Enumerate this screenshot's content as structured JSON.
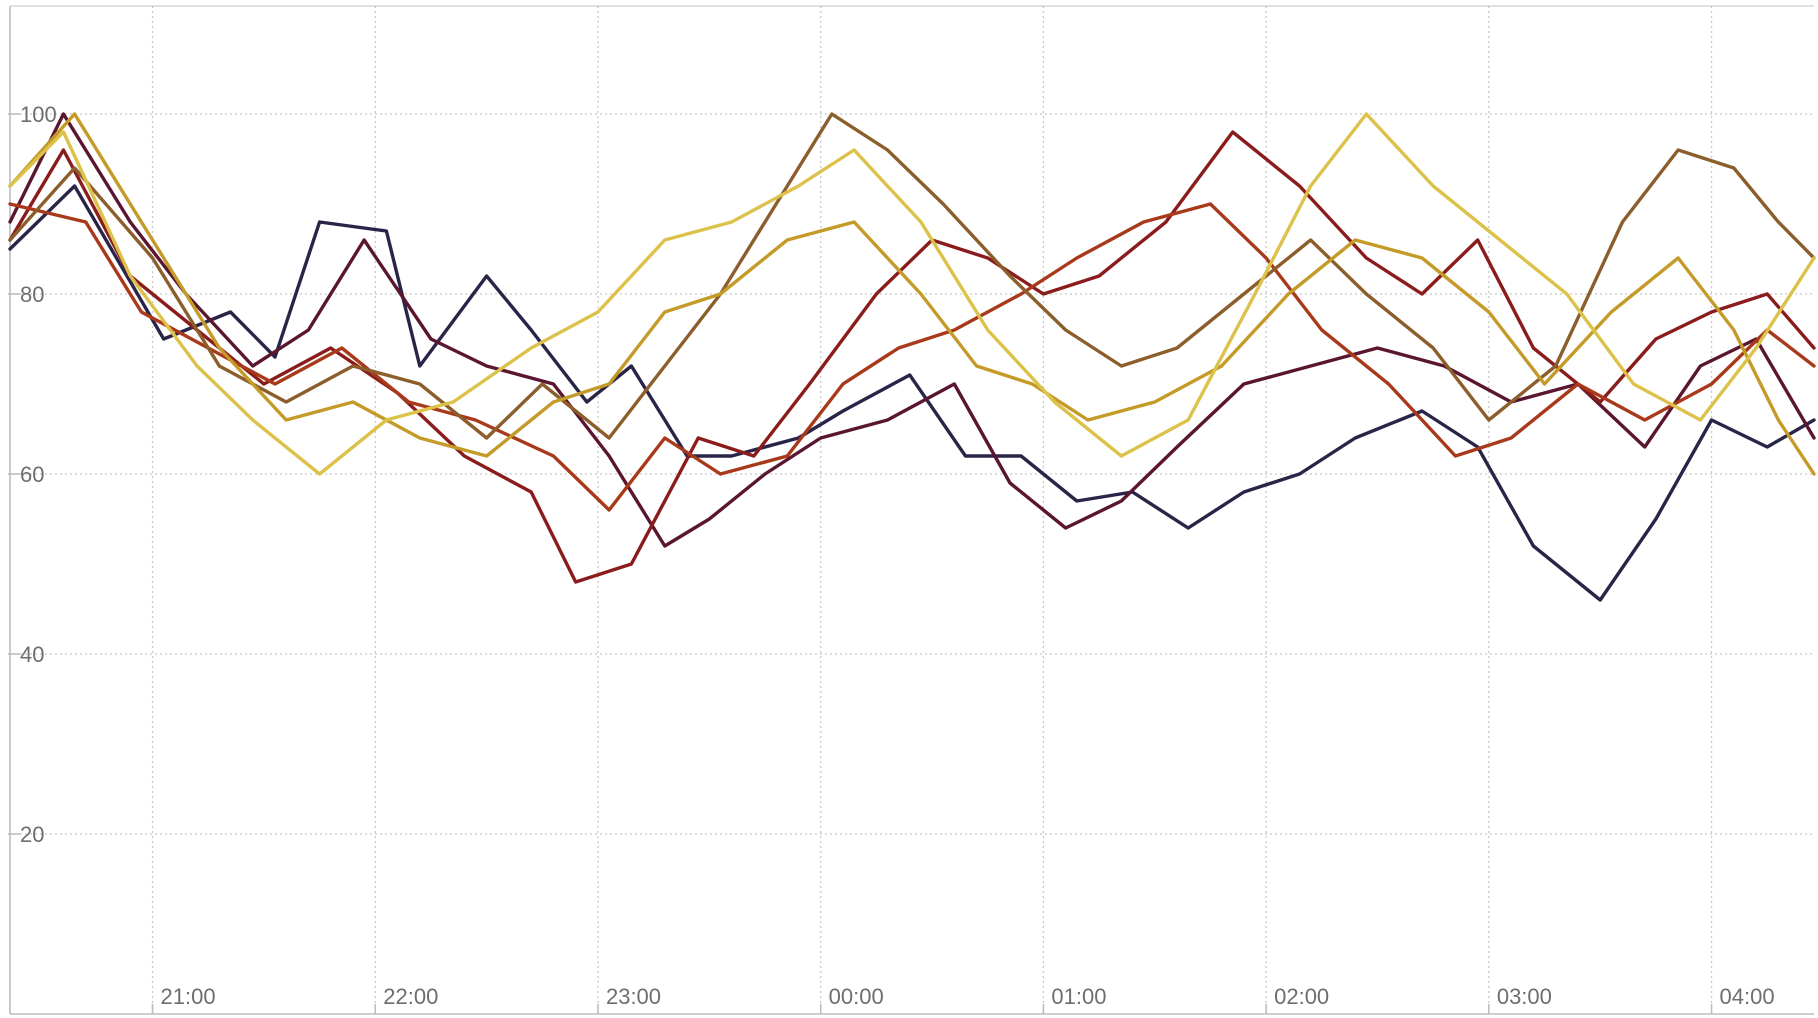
{
  "chart_data": {
    "type": "line",
    "title": "",
    "xlabel": "",
    "ylabel": "",
    "x_ticks": [
      "21:00",
      "22:00",
      "23:00",
      "00:00",
      "01:00",
      "02:00",
      "03:00",
      "04:00"
    ],
    "y_ticks": [
      20,
      40,
      60,
      80,
      100
    ],
    "ylim": [
      0,
      112
    ],
    "x_range_hours": [
      -0.64,
      7.46
    ],
    "grid": true,
    "legend": "none",
    "series": [
      {
        "color": "#2a2548",
        "points": [
          [
            -0.64,
            85
          ],
          [
            -0.35,
            92
          ],
          [
            0.05,
            75
          ],
          [
            0.35,
            78
          ],
          [
            0.55,
            73
          ],
          [
            0.75,
            88
          ],
          [
            1.05,
            87
          ],
          [
            1.2,
            72
          ],
          [
            1.5,
            82
          ],
          [
            1.7,
            76
          ],
          [
            1.95,
            68
          ],
          [
            2.15,
            72
          ],
          [
            2.4,
            62
          ],
          [
            2.6,
            62
          ],
          [
            2.9,
            64
          ],
          [
            3.1,
            67
          ],
          [
            3.4,
            71
          ],
          [
            3.65,
            62
          ],
          [
            3.9,
            62
          ],
          [
            4.15,
            57
          ],
          [
            4.4,
            58
          ],
          [
            4.65,
            54
          ],
          [
            4.9,
            58
          ],
          [
            5.15,
            60
          ],
          [
            5.4,
            64
          ],
          [
            5.7,
            67
          ],
          [
            5.95,
            63
          ],
          [
            6.2,
            52
          ],
          [
            6.5,
            46
          ],
          [
            6.75,
            55
          ],
          [
            7.0,
            66
          ],
          [
            7.25,
            63
          ],
          [
            7.46,
            66
          ]
        ]
      },
      {
        "color": "#5a1630",
        "points": [
          [
            -0.64,
            88
          ],
          [
            -0.4,
            100
          ],
          [
            -0.1,
            88
          ],
          [
            0.15,
            80
          ],
          [
            0.45,
            72
          ],
          [
            0.7,
            76
          ],
          [
            0.95,
            86
          ],
          [
            1.25,
            75
          ],
          [
            1.5,
            72
          ],
          [
            1.8,
            70
          ],
          [
            2.05,
            62
          ],
          [
            2.3,
            52
          ],
          [
            2.5,
            55
          ],
          [
            2.75,
            60
          ],
          [
            3.0,
            64
          ],
          [
            3.3,
            66
          ],
          [
            3.6,
            70
          ],
          [
            3.85,
            59
          ],
          [
            4.1,
            54
          ],
          [
            4.35,
            57
          ],
          [
            4.6,
            63
          ],
          [
            4.9,
            70
          ],
          [
            5.2,
            72
          ],
          [
            5.5,
            74
          ],
          [
            5.8,
            72
          ],
          [
            6.1,
            68
          ],
          [
            6.4,
            70
          ],
          [
            6.7,
            63
          ],
          [
            6.95,
            72
          ],
          [
            7.2,
            75
          ],
          [
            7.46,
            64
          ]
        ]
      },
      {
        "color": "#8a1c1c",
        "points": [
          [
            -0.64,
            86
          ],
          [
            -0.4,
            96
          ],
          [
            -0.1,
            82
          ],
          [
            0.2,
            76
          ],
          [
            0.5,
            70
          ],
          [
            0.8,
            74
          ],
          [
            1.1,
            69
          ],
          [
            1.4,
            62
          ],
          [
            1.7,
            58
          ],
          [
            1.9,
            48
          ],
          [
            2.15,
            50
          ],
          [
            2.45,
            64
          ],
          [
            2.7,
            62
          ],
          [
            2.95,
            70
          ],
          [
            3.25,
            80
          ],
          [
            3.5,
            86
          ],
          [
            3.75,
            84
          ],
          [
            4.0,
            80
          ],
          [
            4.25,
            82
          ],
          [
            4.55,
            88
          ],
          [
            4.85,
            98
          ],
          [
            5.15,
            92
          ],
          [
            5.45,
            84
          ],
          [
            5.7,
            80
          ],
          [
            5.95,
            86
          ],
          [
            6.2,
            74
          ],
          [
            6.5,
            68
          ],
          [
            6.75,
            75
          ],
          [
            7.0,
            78
          ],
          [
            7.25,
            80
          ],
          [
            7.46,
            74
          ]
        ]
      },
      {
        "color": "#a8391a",
        "points": [
          [
            -0.64,
            90
          ],
          [
            -0.3,
            88
          ],
          [
            -0.05,
            78
          ],
          [
            0.25,
            74
          ],
          [
            0.55,
            70
          ],
          [
            0.85,
            74
          ],
          [
            1.15,
            68
          ],
          [
            1.45,
            66
          ],
          [
            1.8,
            62
          ],
          [
            2.05,
            56
          ],
          [
            2.3,
            64
          ],
          [
            2.55,
            60
          ],
          [
            2.85,
            62
          ],
          [
            3.1,
            70
          ],
          [
            3.35,
            74
          ],
          [
            3.6,
            76
          ],
          [
            3.9,
            80
          ],
          [
            4.15,
            84
          ],
          [
            4.45,
            88
          ],
          [
            4.75,
            90
          ],
          [
            5.0,
            84
          ],
          [
            5.25,
            76
          ],
          [
            5.55,
            70
          ],
          [
            5.85,
            62
          ],
          [
            6.1,
            64
          ],
          [
            6.4,
            70
          ],
          [
            6.7,
            66
          ],
          [
            7.0,
            70
          ],
          [
            7.25,
            76
          ],
          [
            7.46,
            72
          ]
        ]
      },
      {
        "color": "#8b5e2c",
        "points": [
          [
            -0.64,
            86
          ],
          [
            -0.35,
            94
          ],
          [
            0.0,
            84
          ],
          [
            0.3,
            72
          ],
          [
            0.6,
            68
          ],
          [
            0.9,
            72
          ],
          [
            1.2,
            70
          ],
          [
            1.5,
            64
          ],
          [
            1.75,
            70
          ],
          [
            2.05,
            64
          ],
          [
            2.3,
            72
          ],
          [
            2.55,
            80
          ],
          [
            2.8,
            90
          ],
          [
            3.05,
            100
          ],
          [
            3.3,
            96
          ],
          [
            3.55,
            90
          ],
          [
            3.85,
            82
          ],
          [
            4.1,
            76
          ],
          [
            4.35,
            72
          ],
          [
            4.6,
            74
          ],
          [
            4.9,
            80
          ],
          [
            5.2,
            86
          ],
          [
            5.45,
            80
          ],
          [
            5.75,
            74
          ],
          [
            6.0,
            66
          ],
          [
            6.3,
            72
          ],
          [
            6.6,
            88
          ],
          [
            6.85,
            96
          ],
          [
            7.1,
            94
          ],
          [
            7.3,
            88
          ],
          [
            7.46,
            84
          ]
        ]
      },
      {
        "color": "#c49a28",
        "points": [
          [
            -0.64,
            92
          ],
          [
            -0.35,
            100
          ],
          [
            0.0,
            86
          ],
          [
            0.3,
            74
          ],
          [
            0.6,
            66
          ],
          [
            0.9,
            68
          ],
          [
            1.2,
            64
          ],
          [
            1.5,
            62
          ],
          [
            1.8,
            68
          ],
          [
            2.05,
            70
          ],
          [
            2.3,
            78
          ],
          [
            2.55,
            80
          ],
          [
            2.85,
            86
          ],
          [
            3.15,
            88
          ],
          [
            3.45,
            80
          ],
          [
            3.7,
            72
          ],
          [
            3.95,
            70
          ],
          [
            4.2,
            66
          ],
          [
            4.5,
            68
          ],
          [
            4.8,
            72
          ],
          [
            5.1,
            80
          ],
          [
            5.4,
            86
          ],
          [
            5.7,
            84
          ],
          [
            6.0,
            78
          ],
          [
            6.25,
            70
          ],
          [
            6.55,
            78
          ],
          [
            6.85,
            84
          ],
          [
            7.1,
            76
          ],
          [
            7.3,
            66
          ],
          [
            7.46,
            60
          ]
        ]
      },
      {
        "color": "#dcc24a",
        "points": [
          [
            -0.64,
            92
          ],
          [
            -0.4,
            98
          ],
          [
            -0.1,
            82
          ],
          [
            0.2,
            72
          ],
          [
            0.45,
            66
          ],
          [
            0.75,
            60
          ],
          [
            1.05,
            66
          ],
          [
            1.35,
            68
          ],
          [
            1.7,
            74
          ],
          [
            2.0,
            78
          ],
          [
            2.3,
            86
          ],
          [
            2.6,
            88
          ],
          [
            2.9,
            92
          ],
          [
            3.15,
            96
          ],
          [
            3.45,
            88
          ],
          [
            3.75,
            76
          ],
          [
            4.05,
            68
          ],
          [
            4.35,
            62
          ],
          [
            4.65,
            66
          ],
          [
            4.95,
            80
          ],
          [
            5.2,
            92
          ],
          [
            5.45,
            100
          ],
          [
            5.75,
            92
          ],
          [
            6.05,
            86
          ],
          [
            6.35,
            80
          ],
          [
            6.65,
            70
          ],
          [
            6.95,
            66
          ],
          [
            7.2,
            74
          ],
          [
            7.46,
            84
          ]
        ]
      }
    ]
  }
}
